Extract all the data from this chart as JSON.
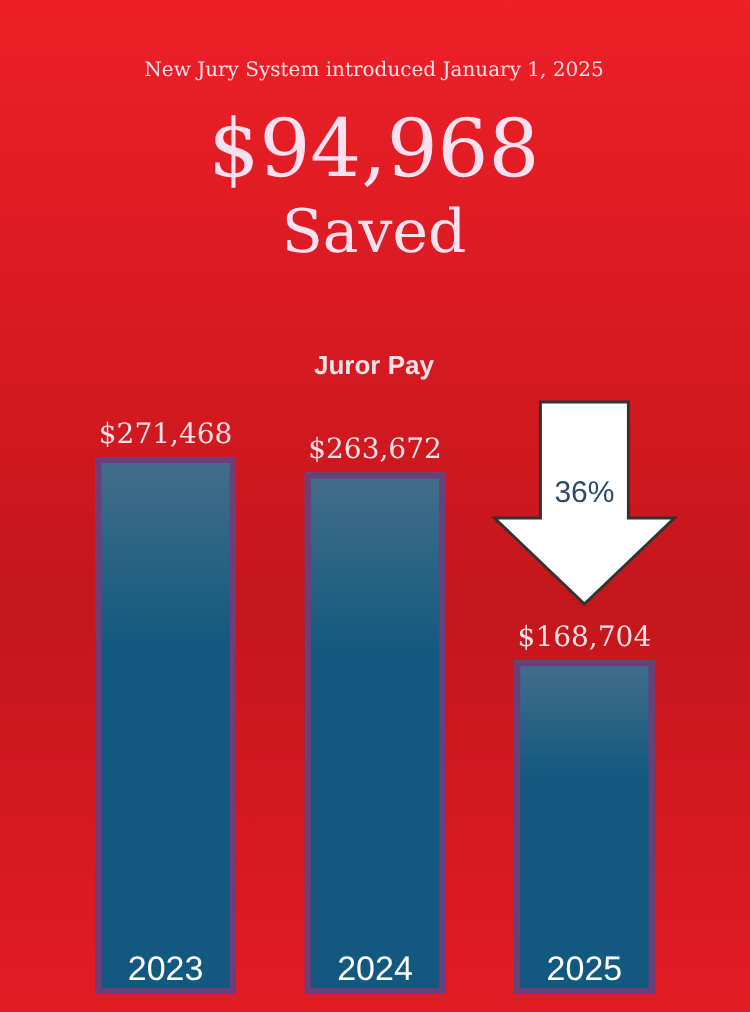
{
  "chart_data": {
    "type": "bar",
    "subtitle": "New Jury System introduced January 1, 2025",
    "title": "$94,968",
    "annotations": [
      "Saved",
      "Juror Pay",
      "36%"
    ],
    "categories": [
      "2023",
      "2024",
      "2025"
    ],
    "values": [
      271468,
      263672,
      168704
    ],
    "value_labels": [
      "$271,468",
      "$263,672",
      "$168,704"
    ],
    "color": "#13597f",
    "ylim": [
      0,
      275000
    ]
  }
}
